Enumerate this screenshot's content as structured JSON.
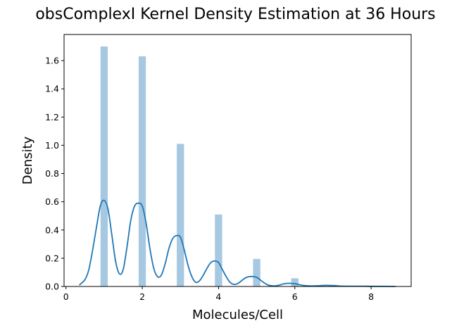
{
  "chart_data": {
    "type": "bar",
    "title": "obsComplexI Kernel Density Estimation at 36 Hours",
    "xlabel": "Molecules/Cell",
    "ylabel": "Density",
    "xlim": [
      -0.05,
      9.05
    ],
    "ylim": [
      0,
      1.785
    ],
    "xticks": [
      0,
      2,
      4,
      6,
      8
    ],
    "yticks": [
      0.0,
      0.2,
      0.4,
      0.6,
      0.8,
      1.0,
      1.2,
      1.4,
      1.6
    ],
    "grid": false,
    "legend": "none",
    "bar_width": 0.19,
    "histogram": {
      "name": "histogram",
      "color": "#a6c8e1",
      "x": [
        1,
        2,
        3,
        4,
        5,
        6,
        7
      ],
      "values": [
        1.7,
        1.63,
        1.01,
        0.51,
        0.195,
        0.058,
        0.012
      ]
    },
    "kde": {
      "name": "kde",
      "color": "#1f77b4",
      "x": [
        0.35,
        0.5,
        0.6,
        0.7,
        0.8,
        0.9,
        1.0,
        1.1,
        1.2,
        1.3,
        1.4,
        1.5,
        1.6,
        1.7,
        1.8,
        1.9,
        2.0,
        2.1,
        2.2,
        2.3,
        2.4,
        2.5,
        2.6,
        2.7,
        2.8,
        2.9,
        3.0,
        3.1,
        3.2,
        3.3,
        3.4,
        3.5,
        3.6,
        3.7,
        3.8,
        3.9,
        4.0,
        4.1,
        4.2,
        4.3,
        4.4,
        4.5,
        4.6,
        4.7,
        4.8,
        4.9,
        5.0,
        5.1,
        5.2,
        5.3,
        5.4,
        5.5,
        5.6,
        5.7,
        5.8,
        5.9,
        6.0,
        6.1,
        6.2,
        6.4,
        6.6,
        6.8,
        7.0,
        7.2,
        7.4,
        7.6,
        7.8,
        8.0,
        8.3,
        8.64
      ],
      "y": [
        0.01,
        0.05,
        0.12,
        0.26,
        0.42,
        0.57,
        0.61,
        0.55,
        0.37,
        0.18,
        0.09,
        0.12,
        0.28,
        0.47,
        0.57,
        0.59,
        0.57,
        0.45,
        0.27,
        0.13,
        0.07,
        0.08,
        0.16,
        0.27,
        0.34,
        0.36,
        0.35,
        0.26,
        0.15,
        0.07,
        0.03,
        0.04,
        0.08,
        0.13,
        0.17,
        0.18,
        0.17,
        0.12,
        0.07,
        0.03,
        0.015,
        0.02,
        0.04,
        0.06,
        0.07,
        0.07,
        0.065,
        0.045,
        0.025,
        0.01,
        0.005,
        0.005,
        0.01,
        0.018,
        0.022,
        0.022,
        0.02,
        0.014,
        0.008,
        0.004,
        0.005,
        0.008,
        0.006,
        0.003,
        0.002,
        0.002,
        0.002,
        0.001,
        0.001,
        0.0
      ]
    }
  }
}
